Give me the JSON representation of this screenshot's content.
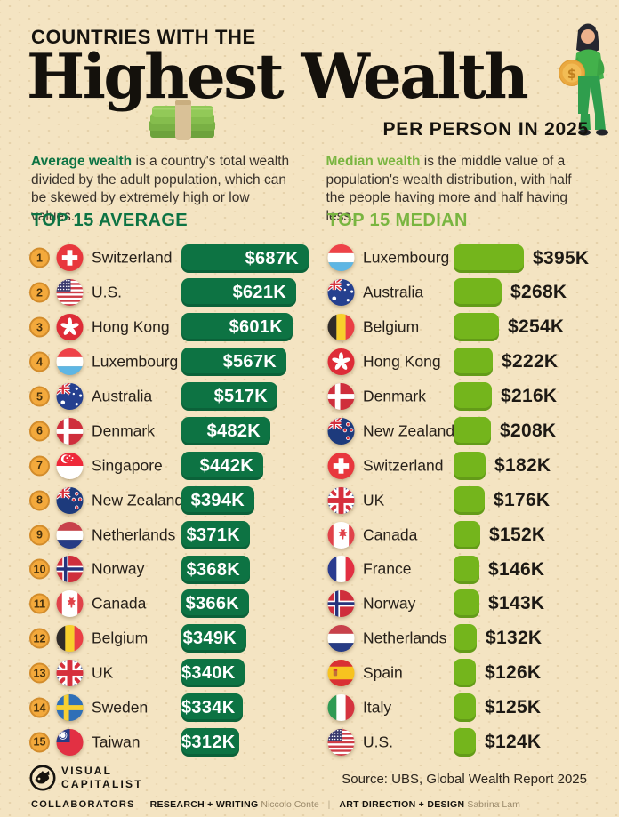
{
  "header": {
    "kicker": "COUNTRIES WITH THE",
    "title": "Highest Wealth",
    "subtitle": "PER PERSON IN 2025"
  },
  "intro": {
    "average": {
      "term": "Average wealth",
      "text": " is a country's total wealth divided by the adult population, which can be skewed by extremely high or low values."
    },
    "median": {
      "term": "Median wealth",
      "text": " is the middle value of a population's wealth distribution, with half the people having more and half having less."
    }
  },
  "chart_data": [
    {
      "type": "bar",
      "title": "TOP 15 AVERAGE",
      "orientation": "horizontal",
      "unit": "USD thousands per adult",
      "bar_color": "#0d7343",
      "value_label_position": "inside-right",
      "ranks": [
        1,
        2,
        3,
        4,
        5,
        6,
        7,
        8,
        9,
        10,
        11,
        12,
        13,
        14,
        15
      ],
      "categories": [
        "Switzerland",
        "U.S.",
        "Hong Kong",
        "Luxembourg",
        "Australia",
        "Denmark",
        "Singapore",
        "New Zealand",
        "Netherlands",
        "Norway",
        "Canada",
        "Belgium",
        "UK",
        "Sweden",
        "Taiwan"
      ],
      "flags": [
        "ch",
        "us",
        "hk",
        "lu",
        "au",
        "dk",
        "sg",
        "nz",
        "nl",
        "no",
        "ca",
        "be",
        "gb",
        "se",
        "tw"
      ],
      "values": [
        687,
        621,
        601,
        567,
        517,
        482,
        442,
        394,
        371,
        368,
        366,
        349,
        340,
        334,
        312
      ],
      "value_labels": [
        "$687K",
        "$621K",
        "$601K",
        "$567K",
        "$517K",
        "$482K",
        "$442K",
        "$394K",
        "$371K",
        "$368K",
        "$366K",
        "$349K",
        "$340K",
        "$334K",
        "$312K"
      ]
    },
    {
      "type": "bar",
      "title": "TOP 15 MEDIAN",
      "orientation": "horizontal",
      "unit": "USD thousands per adult",
      "bar_color": "#74b51c",
      "value_label_position": "outside-right",
      "categories": [
        "Luxembourg",
        "Australia",
        "Belgium",
        "Hong Kong",
        "Denmark",
        "New Zealand",
        "Switzerland",
        "UK",
        "Canada",
        "France",
        "Norway",
        "Netherlands",
        "Spain",
        "Italy",
        "U.S."
      ],
      "flags": [
        "lu",
        "au",
        "be",
        "hk",
        "dk",
        "nz",
        "ch",
        "gb",
        "ca",
        "fr",
        "no",
        "nl",
        "es",
        "it",
        "us"
      ],
      "values": [
        395,
        268,
        254,
        222,
        216,
        208,
        182,
        176,
        152,
        146,
        143,
        132,
        126,
        125,
        124
      ],
      "value_labels": [
        "$395K",
        "$268K",
        "$254K",
        "$222K",
        "$216K",
        "$208K",
        "$182K",
        "$176K",
        "$152K",
        "$146K",
        "$143K",
        "$132K",
        "$126K",
        "$125K",
        "$124K"
      ]
    }
  ],
  "footer": {
    "logo_line1": "VISUAL",
    "logo_line2": "CAPITALIST",
    "source": "Source: UBS, Global Wealth Report 2025",
    "collaborators_label": "COLLABORATORS",
    "credit1_role": "RESEARCH + WRITING",
    "credit1_name": "Niccolo Conte",
    "credit2_role": "ART DIRECTION + DESIGN",
    "credit2_name": "Sabrina Lam"
  },
  "colors": {
    "background": "#f4e4c2",
    "average_green": "#0d7343",
    "median_green": "#74b51c",
    "rank_badge": "#f3a93c",
    "value_text_inside": "#ffffff",
    "value_text_outside": "#1d1914"
  }
}
